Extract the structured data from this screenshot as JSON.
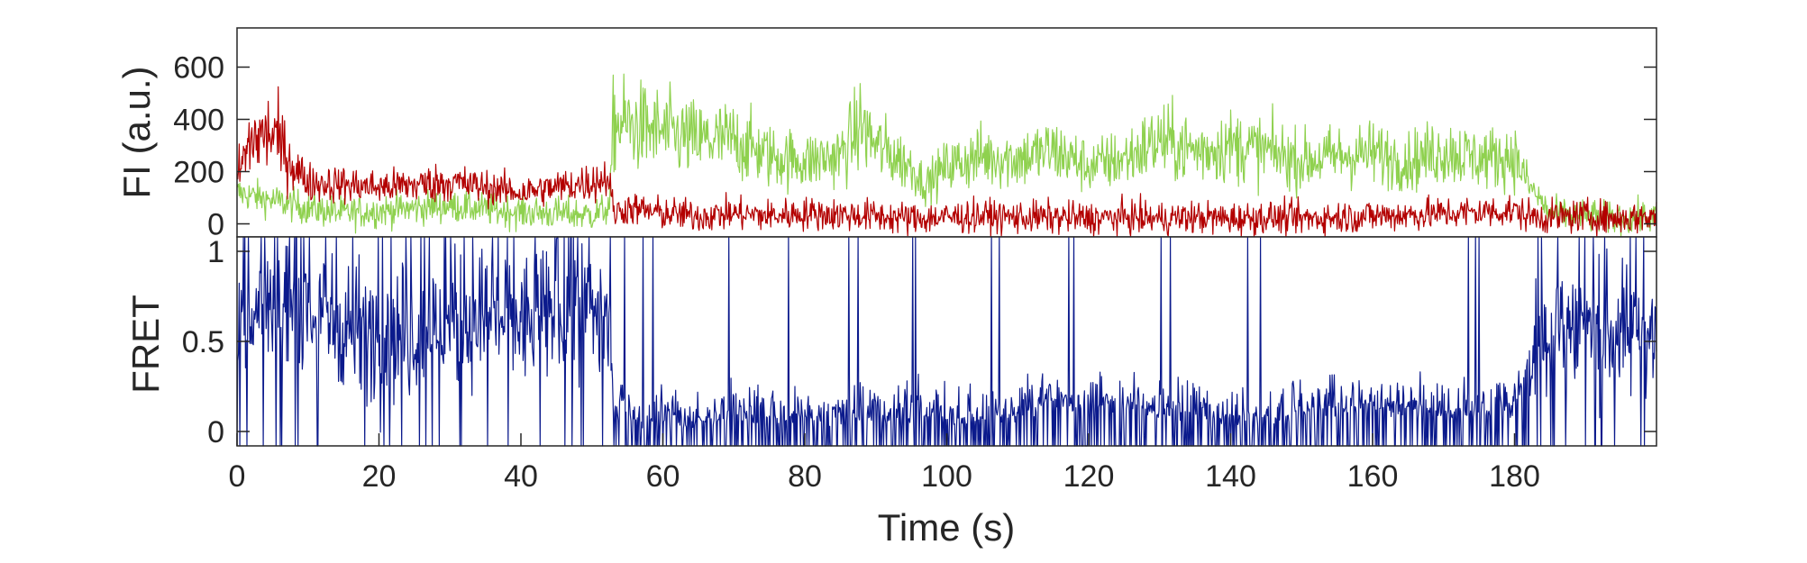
{
  "chart_data": [
    {
      "type": "line",
      "ylabel": "FI (a.u.)",
      "xlim": [
        0,
        200
      ],
      "ylim": [
        -50,
        750
      ],
      "yticks": [
        0,
        200,
        400,
        600
      ],
      "ytick_labels": [
        "0",
        "200",
        "400",
        "600"
      ],
      "grid": false,
      "series": [
        {
          "color": "#8fd14f",
          "x": [
            0,
            5,
            10,
            15,
            20,
            25,
            30,
            35,
            40,
            45,
            50,
            52.5,
            53,
            55,
            60,
            65,
            70,
            75,
            80,
            85,
            88,
            90,
            95,
            97,
            100,
            105,
            110,
            115,
            120,
            125,
            130,
            135,
            140,
            145,
            150,
            155,
            160,
            165,
            170,
            175,
            180,
            182,
            185,
            190,
            195,
            200
          ],
          "values": [
            120,
            90,
            60,
            40,
            50,
            60,
            70,
            55,
            45,
            40,
            35,
            60,
            380,
            380,
            350,
            320,
            320,
            260,
            240,
            260,
            380,
            300,
            220,
            150,
            220,
            260,
            250,
            280,
            220,
            250,
            320,
            280,
            300,
            280,
            240,
            260,
            270,
            240,
            280,
            250,
            260,
            150,
            40,
            30,
            20,
            25
          ]
        },
        {
          "color": "#b30000",
          "x": [
            0,
            2,
            5,
            8,
            10,
            15,
            20,
            25,
            30,
            35,
            40,
            45,
            50,
            52.5,
            53,
            55,
            60,
            65,
            70,
            75,
            80,
            85,
            90,
            95,
            100,
            105,
            110,
            115,
            120,
            125,
            130,
            135,
            140,
            145,
            150,
            155,
            160,
            165,
            170,
            175,
            180,
            182,
            185,
            190,
            195,
            200
          ],
          "values": [
            180,
            320,
            350,
            220,
            160,
            150,
            140,
            150,
            160,
            140,
            120,
            140,
            160,
            180,
            40,
            60,
            40,
            30,
            40,
            30,
            40,
            35,
            30,
            20,
            25,
            30,
            25,
            25,
            20,
            25,
            20,
            25,
            20,
            25,
            20,
            25,
            30,
            35,
            40,
            45,
            50,
            30,
            25,
            30,
            20,
            30
          ]
        }
      ]
    },
    {
      "type": "line",
      "xlabel": "Time (s)",
      "ylabel": "FRET",
      "xlim": [
        0,
        200
      ],
      "ylim": [
        -0.08,
        1.08
      ],
      "xticks": [
        0,
        20,
        40,
        60,
        80,
        100,
        120,
        140,
        160,
        180
      ],
      "xtick_labels": [
        "0",
        "20",
        "40",
        "60",
        "80",
        "100",
        "120",
        "140",
        "160",
        "180"
      ],
      "yticks": [
        0,
        0.5,
        1
      ],
      "ytick_labels": [
        "0",
        "0.5",
        "1"
      ],
      "grid": false,
      "series": [
        {
          "color": "#0b1a8c",
          "x": [
            0,
            5,
            10,
            15,
            20,
            25,
            30,
            35,
            40,
            45,
            50,
            52.5,
            53,
            55,
            60,
            65,
            70,
            75,
            80,
            85,
            90,
            95,
            100,
            105,
            110,
            115,
            120,
            125,
            130,
            135,
            140,
            145,
            150,
            155,
            160,
            165,
            170,
            175,
            180,
            182,
            185,
            190,
            195,
            200
          ],
          "values": [
            0.6,
            0.7,
            0.65,
            0.6,
            0.55,
            0.55,
            0.6,
            0.65,
            0.6,
            0.65,
            0.7,
            0.6,
            0.15,
            0.1,
            0.08,
            0.08,
            0.1,
            0.1,
            0.1,
            0.1,
            0.1,
            0.1,
            0.08,
            0.1,
            0.12,
            0.2,
            0.15,
            0.18,
            0.12,
            0.12,
            0.1,
            0.1,
            0.12,
            0.15,
            0.15,
            0.15,
            0.12,
            0.12,
            0.15,
            0.4,
            0.6,
            0.6,
            0.55,
            0.55
          ]
        }
      ]
    }
  ]
}
